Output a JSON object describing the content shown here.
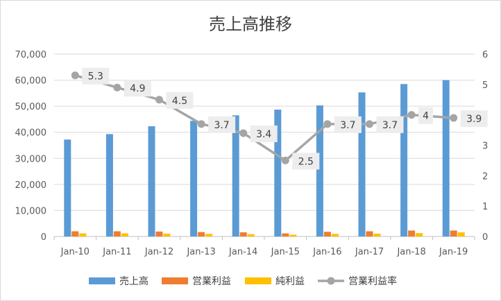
{
  "chart_data": {
    "type": "bar",
    "title": "売上高推移",
    "categories": [
      "Jan-10",
      "Jan-11",
      "Jan-12",
      "Jan-13",
      "Jan-14",
      "Jan-15",
      "Jan-16",
      "Jan-17",
      "Jan-18",
      "Jan-19"
    ],
    "series": [
      {
        "name": "売上高",
        "type": "bar",
        "axis": "left",
        "color": "#5b9bd5",
        "values": [
          37200,
          39300,
          42300,
          44400,
          46500,
          48700,
          50300,
          55300,
          58500,
          60000
        ]
      },
      {
        "name": "営業利益",
        "type": "bar",
        "axis": "left",
        "color": "#ed7d31",
        "values": [
          2000,
          2000,
          1900,
          1700,
          1600,
          1200,
          1800,
          2000,
          2300,
          2300
        ]
      },
      {
        "name": "純利益",
        "type": "bar",
        "axis": "left",
        "color": "#ffc000",
        "values": [
          1200,
          1200,
          1100,
          1000,
          900,
          700,
          1000,
          1100,
          1300,
          1600
        ]
      },
      {
        "name": "営業利益率",
        "type": "line",
        "axis": "right",
        "color": "#a5a5a5",
        "values": [
          5.3,
          4.9,
          4.5,
          3.7,
          3.4,
          2.5,
          3.7,
          3.7,
          4,
          3.9
        ],
        "labels": [
          "5.3",
          "4.9",
          "4.5",
          "3.7",
          "3.4",
          "2.5",
          "3.7",
          "3.7",
          "4",
          "3.9"
        ]
      }
    ],
    "y_left": {
      "min": 0,
      "max": 70000,
      "ticks": [
        "0",
        "10,000",
        "20,000",
        "30,000",
        "40,000",
        "50,000",
        "60,000",
        "70,000"
      ]
    },
    "y_right": {
      "min": 0,
      "max": 6,
      "ticks": [
        "0",
        "1",
        "2",
        "3",
        "4",
        "5",
        "6"
      ]
    },
    "xlabel": "",
    "ylabel": "",
    "grid": true,
    "legend_position": "bottom"
  }
}
